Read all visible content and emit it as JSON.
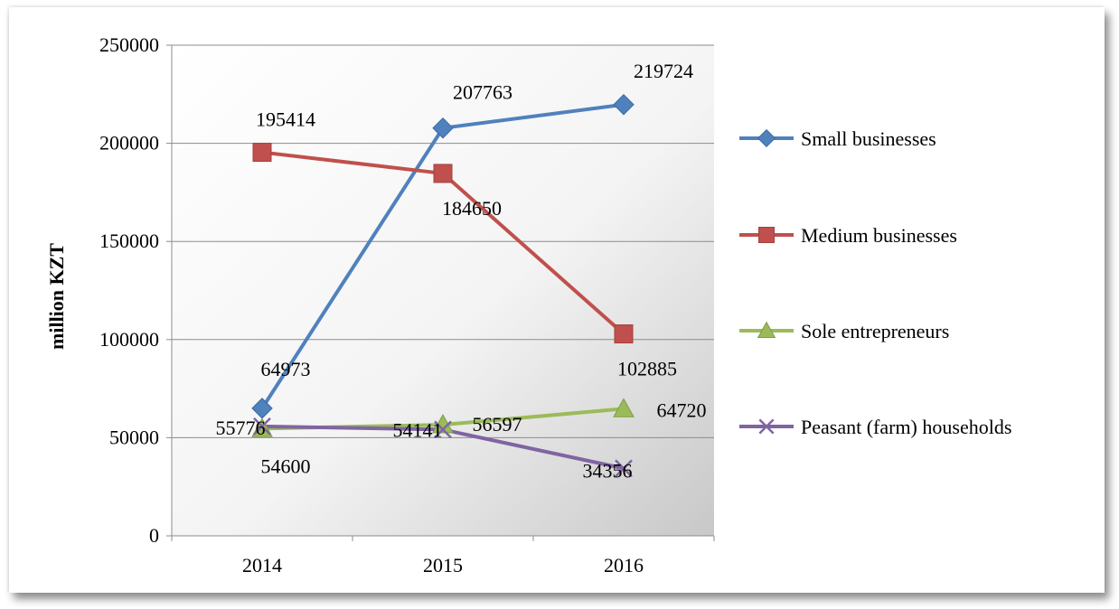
{
  "chart_data": {
    "type": "line",
    "title": "",
    "xlabel": "",
    "ylabel": "million  KZT",
    "categories": [
      "2014",
      "2015",
      "2016"
    ],
    "ylim": [
      0,
      250000
    ],
    "yticks": [
      0,
      50000,
      100000,
      150000,
      200000,
      250000
    ],
    "grid": "horizontal",
    "legend_position": "right",
    "series": [
      {
        "name": "Small businesses",
        "values": [
          64973,
          207763,
          219724
        ],
        "color": "#4F81BD",
        "marker": "diamond",
        "labels": [
          "64973",
          "207763",
          "219724"
        ]
      },
      {
        "name": "Medium businesses",
        "values": [
          195414,
          184650,
          102885
        ],
        "color": "#C0504D",
        "marker": "square",
        "labels": [
          "195414",
          "184650",
          "102885"
        ]
      },
      {
        "name": "Sole entrepreneurs",
        "values": [
          54600,
          56597,
          64720
        ],
        "color": "#9BBB59",
        "marker": "triangle",
        "labels": [
          "54600",
          "56597",
          "64720"
        ]
      },
      {
        "name": "Peasant (farm) households",
        "values": [
          55776,
          54141,
          34356
        ],
        "color": "#8064A2",
        "marker": "x",
        "labels": [
          "55776",
          "54141",
          "34356"
        ]
      }
    ]
  }
}
